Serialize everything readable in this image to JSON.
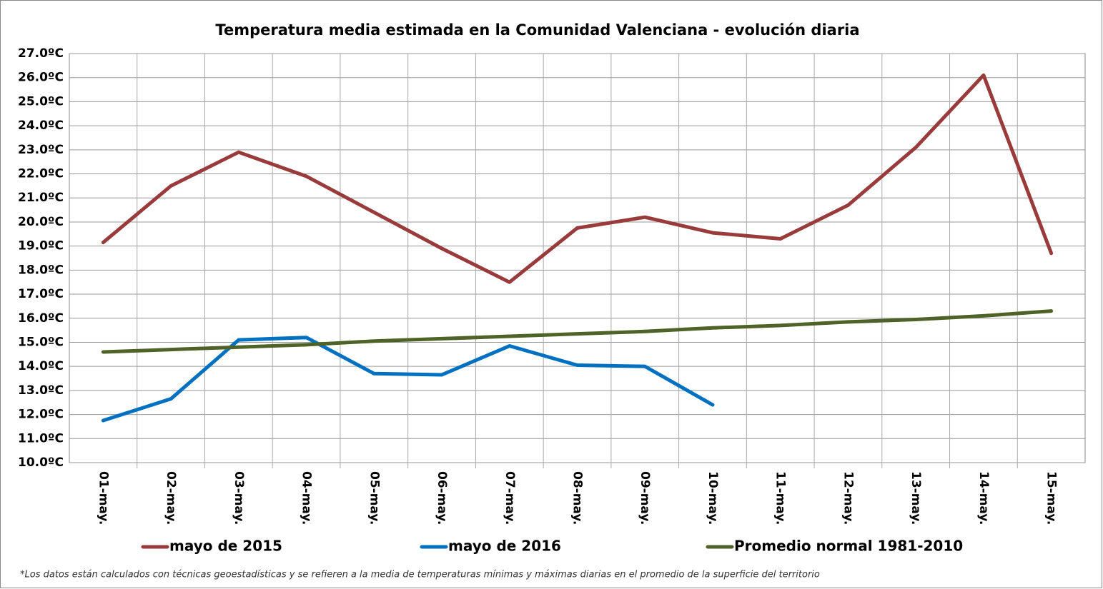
{
  "chart_data": {
    "type": "line",
    "title": "Temperatura  media  estimada  en  la  Comunidad  Valenciana  -  evolución  diaria",
    "categories": [
      "01-may.",
      "02-may.",
      "03-may.",
      "04-may.",
      "05-may.",
      "06-may.",
      "07-may.",
      "08-may.",
      "09-may.",
      "10-may.",
      "11-may.",
      "12-may.",
      "13-may.",
      "14-may.",
      "15-may."
    ],
    "series": [
      {
        "name": "mayo de 2015",
        "color": "#993b3b",
        "values": [
          19.15,
          21.5,
          22.9,
          21.9,
          20.4,
          18.9,
          17.5,
          19.75,
          20.2,
          19.55,
          19.3,
          20.7,
          23.1,
          26.1,
          18.7
        ]
      },
      {
        "name": "mayo de 2016",
        "color": "#0070c0",
        "values": [
          11.75,
          12.65,
          15.1,
          15.2,
          13.7,
          13.65,
          14.85,
          14.05,
          14.0,
          12.4,
          null,
          null,
          null,
          null,
          null
        ]
      },
      {
        "name": "Promedio normal 1981-2010",
        "color": "#4f6228",
        "values": [
          14.6,
          14.7,
          14.8,
          14.9,
          15.05,
          15.15,
          15.25,
          15.35,
          15.45,
          15.6,
          15.7,
          15.85,
          15.95,
          16.1,
          16.3
        ]
      }
    ],
    "ylim": [
      10,
      27
    ],
    "yticks": [
      {
        "value": 10,
        "label": "10.0ºC"
      },
      {
        "value": 11,
        "label": "11.0ºC"
      },
      {
        "value": 12,
        "label": "12.0ºC"
      },
      {
        "value": 13,
        "label": "13.0ºC"
      },
      {
        "value": 14,
        "label": "14.0ºC"
      },
      {
        "value": 15,
        "label": "15.0ºC"
      },
      {
        "value": 16,
        "label": "16.0ºC"
      },
      {
        "value": 17,
        "label": "17.0ºC"
      },
      {
        "value": 18,
        "label": "18.0ºC"
      },
      {
        "value": 19,
        "label": "19.0ºC"
      },
      {
        "value": 20,
        "label": "20.0ºC"
      },
      {
        "value": 21,
        "label": "21.0ºC"
      },
      {
        "value": 22,
        "label": "22.0ºC"
      },
      {
        "value": 23,
        "label": "23.0ºC"
      },
      {
        "value": 24,
        "label": "24.0ºC"
      },
      {
        "value": 25,
        "label": "25.0ºC"
      },
      {
        "value": 26,
        "label": "26.0ºC"
      },
      {
        "value": 27,
        "label": "27.0ºC"
      }
    ],
    "grid": true,
    "legend": "bottom",
    "note": "*Los datos están calculados con técnicas geoestadísticas y se refieren a la media de temperaturas mínimas y máximas diarias en el promedio de la superficie del territorio"
  }
}
